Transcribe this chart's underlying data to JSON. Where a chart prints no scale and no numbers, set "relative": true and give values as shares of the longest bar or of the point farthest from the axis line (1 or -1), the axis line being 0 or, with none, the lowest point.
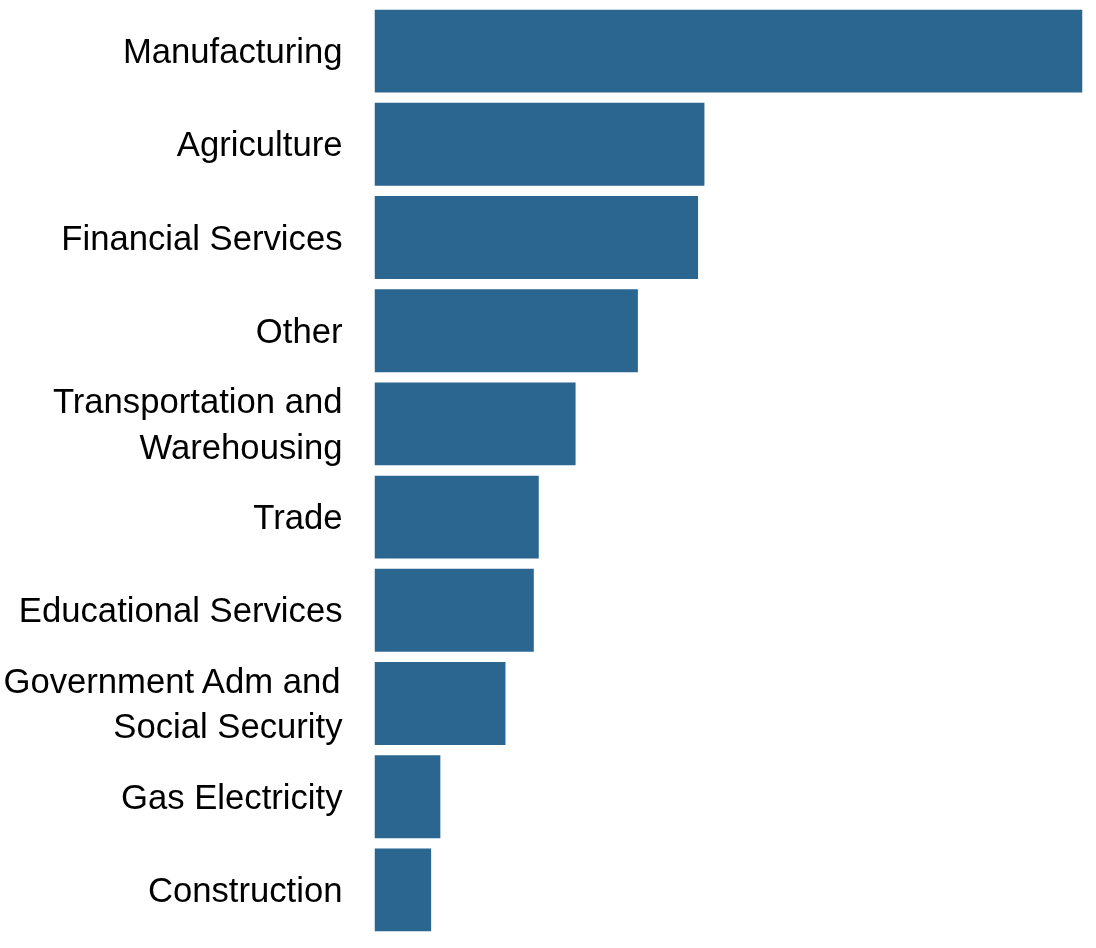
{
  "chart_data": {
    "type": "bar",
    "orientation": "horizontal",
    "relative": true,
    "categories": [
      "Manufacturing",
      "Agriculture",
      "Financial Services",
      "Other",
      "Transportation and Warehousing",
      "Trade",
      "Educational Services",
      "Government Adm and Social Security",
      "Gas Electricity",
      "Construction"
    ],
    "values": [
      1,
      0.466,
      0.457,
      0.372,
      0.284,
      0.232,
      0.225,
      0.185,
      0.093,
      0.08
    ],
    "color": "#2a6690"
  }
}
